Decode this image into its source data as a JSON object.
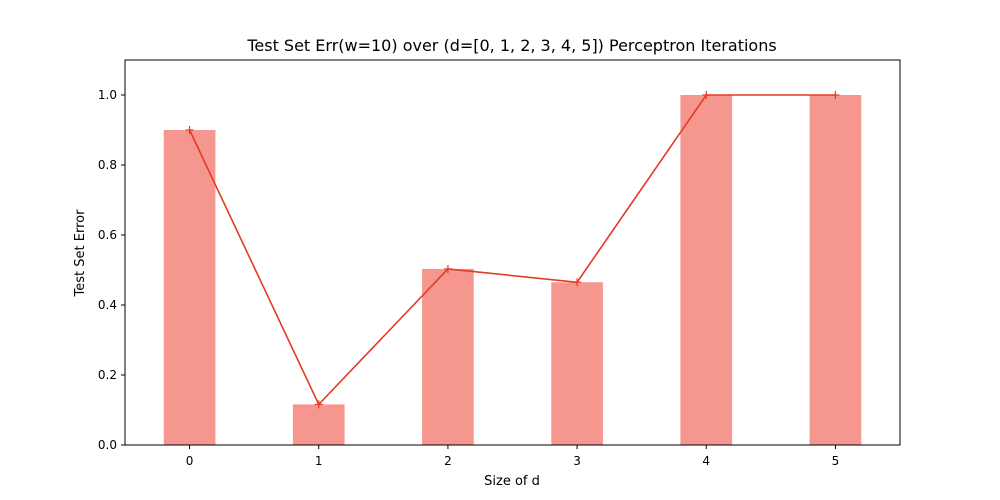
{
  "chart_data": {
    "type": "bar",
    "title": "Test Set Err(w=10) over (d=[0, 1, 2, 3, 4, 5]) Perceptron Iterations",
    "xlabel": "Size of d",
    "ylabel": "Test Set Error",
    "categories": [
      "0",
      "1",
      "2",
      "3",
      "4",
      "5"
    ],
    "x": [
      0,
      1,
      2,
      3,
      4,
      5
    ],
    "values": [
      0.9,
      0.116,
      0.503,
      0.465,
      1.0,
      1.0
    ],
    "line_overlay": {
      "values": [
        0.9,
        0.116,
        0.503,
        0.465,
        1.0,
        1.0
      ],
      "marker": "+"
    },
    "xlim": [
      -0.5,
      5.5
    ],
    "ylim": [
      0.0,
      1.1
    ],
    "yticks": [
      0.0,
      0.2,
      0.4,
      0.6,
      0.8,
      1.0
    ],
    "ytick_labels": [
      "0.0",
      "0.2",
      "0.4",
      "0.6",
      "0.8",
      "1.0"
    ],
    "grid": false,
    "bar_color": "#f5978f",
    "line_color": "#e33b26"
  }
}
